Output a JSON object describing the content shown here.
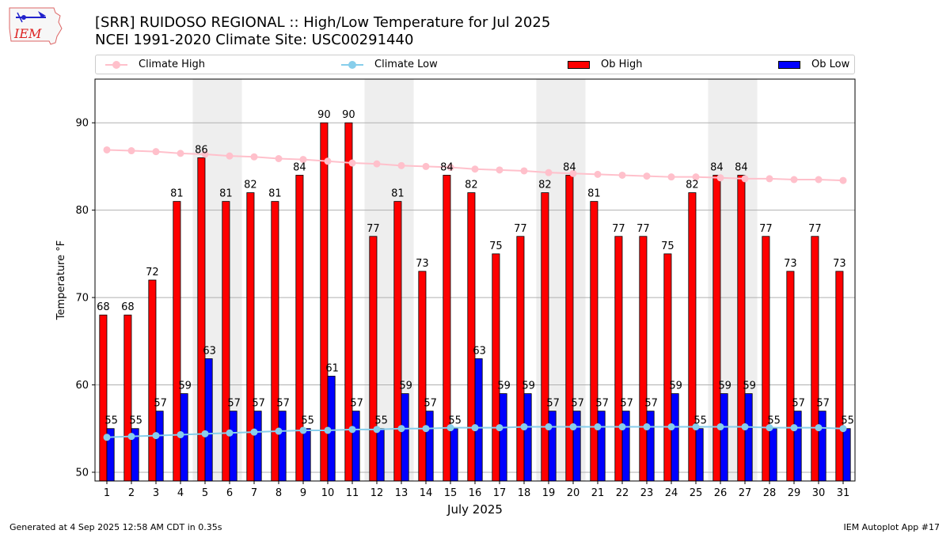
{
  "header": {
    "title_line1": "[SRR] RUIDOSO REGIONAL :: High/Low Temperature for Jul 2025",
    "title_line2": "NCEI 1991-2020 Climate Site: USC00291440"
  },
  "logo": {
    "text": "IEM"
  },
  "footer": {
    "left": "Generated at 4 Sep 2025 12:58 AM CDT in 0.35s",
    "right": "IEM Autoplot App #17"
  },
  "colors": {
    "ob_high": "#ff0000",
    "ob_low": "#0000ff",
    "climate_high": "#ffc0cb",
    "climate_low": "#87ceeb",
    "weekend_shade": "#eeeeee",
    "grid": "#b0b0b0"
  },
  "legend": [
    {
      "label": "Climate High",
      "kind": "line",
      "color": "#ffc0cb"
    },
    {
      "label": "Climate Low",
      "kind": "line",
      "color": "#87ceeb"
    },
    {
      "label": "Ob High",
      "kind": "bar",
      "color": "#ff0000"
    },
    {
      "label": "Ob Low",
      "kind": "bar",
      "color": "#0000ff"
    }
  ],
  "chart_data": {
    "type": "bar",
    "xlabel": "July 2025",
    "ylabel": "Temperature °F",
    "ylim": [
      49,
      95
    ],
    "yticks": [
      50,
      60,
      70,
      80,
      90
    ],
    "grid": "horizontal",
    "legend_position": "top",
    "categories": [
      "1",
      "2",
      "3",
      "4",
      "5",
      "6",
      "7",
      "8",
      "9",
      "10",
      "11",
      "12",
      "13",
      "14",
      "15",
      "16",
      "17",
      "18",
      "19",
      "20",
      "21",
      "22",
      "23",
      "24",
      "25",
      "26",
      "27",
      "28",
      "29",
      "30",
      "31"
    ],
    "shaded_day_ranges": [
      [
        5,
        6
      ],
      [
        12,
        13
      ],
      [
        19,
        20
      ],
      [
        26,
        27
      ]
    ],
    "series": [
      {
        "name": "Ob High",
        "type": "bar",
        "values": [
          68,
          68,
          72,
          81,
          86,
          81,
          82,
          81,
          84,
          90,
          90,
          77,
          81,
          73,
          84,
          82,
          75,
          77,
          82,
          84,
          81,
          77,
          77,
          75,
          82,
          84,
          84,
          77,
          73,
          77,
          73
        ]
      },
      {
        "name": "Ob Low",
        "type": "bar",
        "values": [
          55,
          55,
          57,
          59,
          63,
          57,
          57,
          57,
          55,
          61,
          57,
          55,
          59,
          57,
          55,
          63,
          59,
          59,
          57,
          57,
          57,
          57,
          57,
          59,
          55,
          59,
          59,
          55,
          57,
          57,
          55
        ]
      },
      {
        "name": "Climate High",
        "type": "line",
        "values": [
          86.9,
          86.8,
          86.7,
          86.5,
          86.4,
          86.2,
          86.1,
          85.9,
          85.8,
          85.6,
          85.4,
          85.3,
          85.1,
          85.0,
          84.9,
          84.7,
          84.6,
          84.5,
          84.3,
          84.2,
          84.1,
          84.0,
          83.9,
          83.8,
          83.8,
          83.7,
          83.6,
          83.6,
          83.5,
          83.5,
          83.4
        ]
      },
      {
        "name": "Climate Low",
        "type": "line",
        "values": [
          54.0,
          54.1,
          54.2,
          54.3,
          54.4,
          54.5,
          54.6,
          54.7,
          54.8,
          54.8,
          54.9,
          54.9,
          55.0,
          55.0,
          55.1,
          55.1,
          55.1,
          55.2,
          55.2,
          55.2,
          55.2,
          55.2,
          55.2,
          55.2,
          55.2,
          55.2,
          55.2,
          55.1,
          55.1,
          55.1,
          55.0
        ]
      }
    ]
  }
}
